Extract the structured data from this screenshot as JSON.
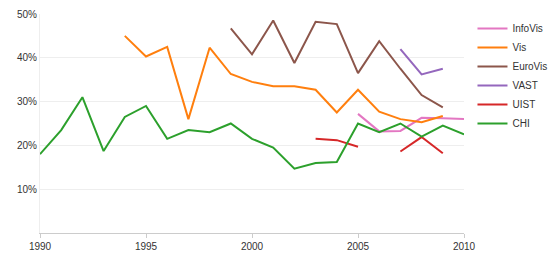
{
  "chart_data": {
    "type": "line",
    "x": [
      1990,
      1991,
      1992,
      1993,
      1994,
      1995,
      1996,
      1997,
      1998,
      1999,
      2000,
      2001,
      2002,
      2003,
      2004,
      2005,
      2006,
      2007,
      2008,
      2009,
      2010
    ],
    "series": [
      {
        "name": "InfoVis",
        "color": "#e377c2",
        "values": [
          null,
          null,
          null,
          null,
          null,
          null,
          null,
          null,
          null,
          null,
          null,
          null,
          null,
          null,
          null,
          27.2,
          23.2,
          23.3,
          26.3,
          26.2,
          26
        ]
      },
      {
        "name": "Vis",
        "color": "#ff7f0e",
        "values": [
          null,
          null,
          null,
          null,
          45,
          40.3,
          42.5,
          26,
          42.3,
          36.3,
          34.5,
          33.5,
          33.5,
          32.7,
          27.5,
          32.7,
          27.7,
          26,
          25.3,
          26.7,
          null
        ]
      },
      {
        "name": "EuroVis",
        "color": "#8c564b",
        "values": [
          null,
          null,
          null,
          null,
          null,
          null,
          null,
          null,
          null,
          46.7,
          40.8,
          48.5,
          38.8,
          48.2,
          47.7,
          36.5,
          43.8,
          37.5,
          31.5,
          28.7,
          null
        ]
      },
      {
        "name": "VAST",
        "color": "#9467bd",
        "values": [
          null,
          null,
          null,
          null,
          null,
          null,
          null,
          null,
          null,
          null,
          null,
          null,
          null,
          null,
          null,
          null,
          null,
          42,
          36.2,
          37.5,
          null
        ]
      },
      {
        "name": "UIST",
        "color": "#d62728",
        "values": [
          null,
          null,
          null,
          null,
          null,
          null,
          null,
          null,
          null,
          null,
          null,
          null,
          null,
          21.5,
          21.2,
          19.7,
          null,
          18.6,
          21.9,
          18.2,
          null
        ]
      },
      {
        "name": "CHI",
        "color": "#2ca02c",
        "values": [
          18,
          23.5,
          31,
          18.7,
          26.5,
          29,
          21.5,
          23.5,
          23,
          25,
          21.5,
          19.5,
          14.7,
          16,
          16.2,
          25,
          23,
          25,
          22,
          24.5,
          22.5
        ]
      }
    ],
    "xlim": [
      1990,
      2010
    ],
    "xticks": [
      1990,
      1995,
      2000,
      2005,
      2010
    ],
    "ylim": [
      0,
      50
    ],
    "yticks": [
      {
        "value": 10,
        "label": "10%"
      },
      {
        "value": 20,
        "label": "20%"
      },
      {
        "value": 30,
        "label": "30%"
      },
      {
        "value": 40,
        "label": "40%"
      },
      {
        "value": 50,
        "label": "50%"
      }
    ],
    "grid": true,
    "legend": "top right"
  }
}
